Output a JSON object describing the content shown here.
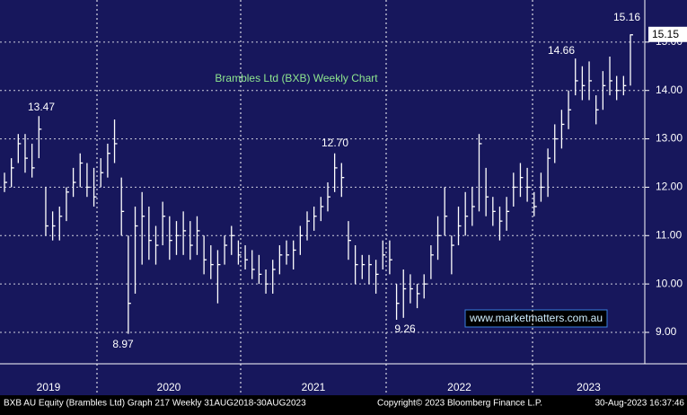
{
  "chart_data": {
    "type": "ohlc",
    "title": "Brambles Ltd (BXB) Weekly Chart",
    "watermark": "www.marketmatters.com.au",
    "ylim": [
      8.35,
      15.87
    ],
    "yticks": [
      {
        "value": 9,
        "label": "9.00"
      },
      {
        "value": 10,
        "label": "10.00"
      },
      {
        "value": 11,
        "label": "11.00"
      },
      {
        "value": 12,
        "label": "12.00"
      },
      {
        "value": 13,
        "label": "13.00"
      },
      {
        "value": 14,
        "label": "14.00"
      },
      {
        "value": 15,
        "label": "15.00"
      }
    ],
    "grid": true,
    "color": "#ffffff",
    "x_labels": [
      "2019",
      "2020",
      "2021",
      "2022",
      "2023"
    ],
    "annotations": [
      "13.47",
      "8.97",
      "12.70",
      "9.26",
      "14.66",
      "15.16"
    ],
    "last_price": "15.15",
    "high": [
      12.3,
      12.6,
      13.1,
      13.1,
      12.9,
      13.47,
      12.0,
      11.5,
      11.6,
      12.0,
      12.4,
      12.7,
      12.5,
      12.4,
      12.6,
      12.9,
      13.4,
      12.2,
      11.0,
      11.6,
      11.9,
      11.6,
      11.2,
      11.7,
      11.4,
      11.3,
      11.5,
      11.3,
      11.4,
      11.0,
      10.8,
      10.7,
      11.0,
      11.2,
      10.9,
      10.8,
      10.7,
      10.6,
      10.3,
      10.5,
      10.8,
      10.9,
      10.9,
      11.2,
      11.5,
      11.6,
      11.8,
      12.1,
      12.7,
      12.5,
      11.3,
      10.8,
      10.6,
      10.6,
      10.5,
      10.9,
      10.9,
      10.0,
      10.3,
      10.2,
      10.0,
      10.2,
      10.8,
      11.4,
      12.0,
      11.0,
      11.6,
      11.9,
      12.0,
      13.1,
      12.4,
      11.8,
      11.6,
      11.8,
      12.3,
      12.5,
      12.4,
      11.9,
      12.3,
      12.8,
      13.3,
      13.6,
      14.0,
      14.66,
      14.5,
      14.6,
      13.9,
      14.4,
      14.7,
      14.3,
      14.3,
      15.16
    ],
    "low": [
      11.9,
      12.0,
      12.5,
      12.3,
      12.2,
      12.6,
      11.0,
      10.9,
      10.9,
      11.3,
      11.8,
      12.0,
      11.8,
      11.6,
      12.0,
      12.2,
      12.5,
      11.0,
      8.97,
      9.8,
      10.4,
      10.5,
      10.4,
      10.8,
      10.5,
      10.6,
      10.6,
      10.5,
      10.6,
      10.2,
      10.1,
      9.6,
      10.4,
      10.6,
      10.4,
      10.3,
      10.1,
      10.0,
      9.8,
      9.8,
      10.2,
      10.4,
      10.3,
      10.6,
      10.9,
      11.1,
      11.3,
      11.5,
      11.9,
      11.8,
      10.5,
      10.0,
      10.1,
      10.0,
      9.8,
      10.3,
      10.2,
      9.26,
      9.3,
      9.6,
      9.5,
      9.7,
      10.1,
      10.5,
      11.0,
      10.2,
      10.8,
      11.0,
      11.2,
      11.5,
      11.4,
      11.2,
      10.9,
      11.1,
      11.6,
      11.8,
      11.7,
      11.4,
      11.7,
      11.8,
      12.5,
      12.8,
      13.2,
      13.9,
      13.8,
      13.8,
      13.3,
      13.6,
      13.9,
      13.8,
      13.9,
      14.1
    ],
    "close": [
      12.1,
      12.4,
      12.9,
      12.6,
      12.4,
      13.2,
      11.2,
      11.2,
      11.4,
      11.9,
      12.1,
      12.5,
      12.0,
      11.8,
      12.3,
      12.7,
      12.9,
      11.5,
      9.6,
      11.2,
      11.4,
      10.9,
      10.8,
      11.4,
      10.9,
      11.0,
      11.1,
      10.8,
      11.1,
      10.5,
      10.4,
      10.4,
      10.8,
      11.0,
      10.6,
      10.5,
      10.3,
      10.2,
      10.0,
      10.3,
      10.6,
      10.6,
      10.7,
      11.0,
      11.3,
      11.4,
      11.6,
      11.8,
      12.4,
      12.2,
      10.9,
      10.4,
      10.4,
      10.4,
      10.2,
      10.6,
      10.5,
      9.6,
      9.9,
      9.9,
      9.8,
      10.0,
      10.6,
      11.0,
      11.4,
      10.8,
      11.2,
      11.4,
      11.6,
      12.9,
      11.8,
      11.5,
      11.3,
      11.5,
      12.0,
      12.2,
      12.0,
      11.6,
      12.0,
      12.6,
      13.0,
      13.3,
      13.6,
      14.2,
      14.1,
      14.2,
      13.6,
      14.1,
      14.2,
      14.0,
      14.1,
      15.15
    ]
  },
  "footer": {
    "left": "BXB AU Equity (Brambles Ltd) Graph 217  Weekly 31AUG2018-30AUG2023",
    "center": "Copyright© 2023 Bloomberg Finance L.P.",
    "right": "30-Aug-2023 16:37:46"
  }
}
